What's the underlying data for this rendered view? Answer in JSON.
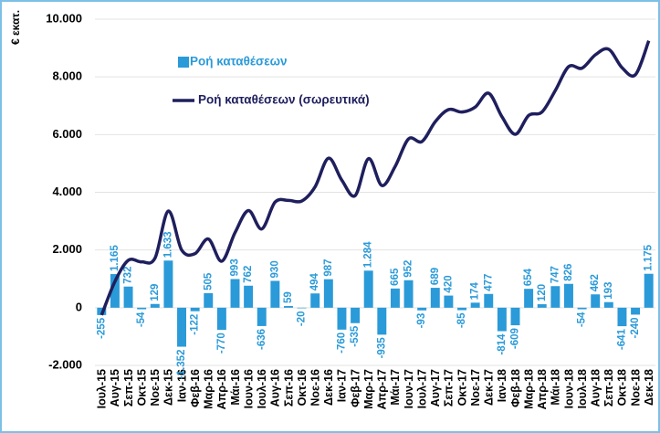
{
  "chart_data": {
    "type": "bar-line",
    "y_axis_label": "€ εκατ.",
    "categories": [
      "Ιουλ-15",
      "Αυγ-15",
      "Σεπ-15",
      "Οκτ-15",
      "Νοε-15",
      "Δεκ-15",
      "Ιαν-16",
      "Φεβ-16",
      "Μαρ-16",
      "Απρ-16",
      "Μάι-16",
      "Ιουν-16",
      "Ιουλ-16",
      "Αυγ-16",
      "Σεπ-16",
      "Οκτ-16",
      "Νοε-16",
      "Δεκ-16",
      "Ιαν-17",
      "Φεβ-17",
      "Μαρ-17",
      "Απρ-17",
      "Μάι-17",
      "Ιουν-17",
      "Ιουλ-17",
      "Αυγ-17",
      "Σεπ-17",
      "Οκτ-17",
      "Νοε-17",
      "Δεκ-17",
      "Ιαν-18",
      "Φεβ-18",
      "Μαρ-18",
      "Απρ-18",
      "Μάι-18",
      "Ιουν-18",
      "Ιουλ-18",
      "Αυγ-18",
      "Σεπ-18",
      "Οκτ-18",
      "Νοε-18",
      "Δεκ-18"
    ],
    "series": [
      {
        "name": "Ροή καταθέσεων",
        "color": "#2a9ad8",
        "kind": "bar",
        "values": [
          -255,
          1165,
          732,
          -54,
          129,
          1633,
          -1352,
          -122,
          505,
          -770,
          993,
          762,
          -636,
          930,
          59,
          -20,
          494,
          987,
          -760,
          -535,
          1284,
          -935,
          665,
          952,
          -93,
          689,
          420,
          -85,
          174,
          477,
          -814,
          -609,
          654,
          120,
          747,
          826,
          -54,
          462,
          193,
          -641,
          -240,
          1175
        ],
        "value_labels": [
          "-255",
          "1.165",
          "732",
          "-54",
          "129",
          "1.633",
          "-1.352",
          "-122",
          "505",
          "-770",
          "993",
          "762",
          "-636",
          "930",
          "59",
          "-20",
          "494",
          "987",
          "-760",
          "-535",
          "1.284",
          "-935",
          "665",
          "952",
          "-93",
          "689",
          "420",
          "-85",
          "174",
          "477",
          "-814",
          "-609",
          "654",
          "120",
          "747",
          "826",
          "-54",
          "462",
          "193",
          "-641",
          "-240",
          "1.175"
        ]
      },
      {
        "name": "Ροή καταθέσεων (σωρευτικά)",
        "color": "#1f1f5e",
        "kind": "line",
        "values": [
          -255,
          910,
          1642,
          1588,
          1717,
          3350,
          1998,
          1876,
          2381,
          1611,
          2604,
          3366,
          2730,
          3660,
          3719,
          3699,
          4193,
          5180,
          4420,
          3885,
          5169,
          4234,
          4899,
          5851,
          5758,
          6447,
          6867,
          6782,
          6956,
          7433,
          6619,
          6010,
          6664,
          6784,
          7531,
          8357,
          8303,
          8765,
          8958,
          8317,
          8077,
          9252
        ]
      }
    ],
    "ylim": [
      -2000,
      10000
    ],
    "yticks": [
      {
        "value": -2000,
        "label": "-2.000"
      },
      0,
      {
        "value": 2000,
        "label": "2.000"
      },
      {
        "value": 4000,
        "label": "4.000"
      },
      {
        "value": 6000,
        "label": "6.000"
      },
      {
        "value": 8000,
        "label": "8.000"
      },
      {
        "value": 10000,
        "label": "10.000"
      }
    ],
    "grid": true,
    "legend": "upper left"
  }
}
